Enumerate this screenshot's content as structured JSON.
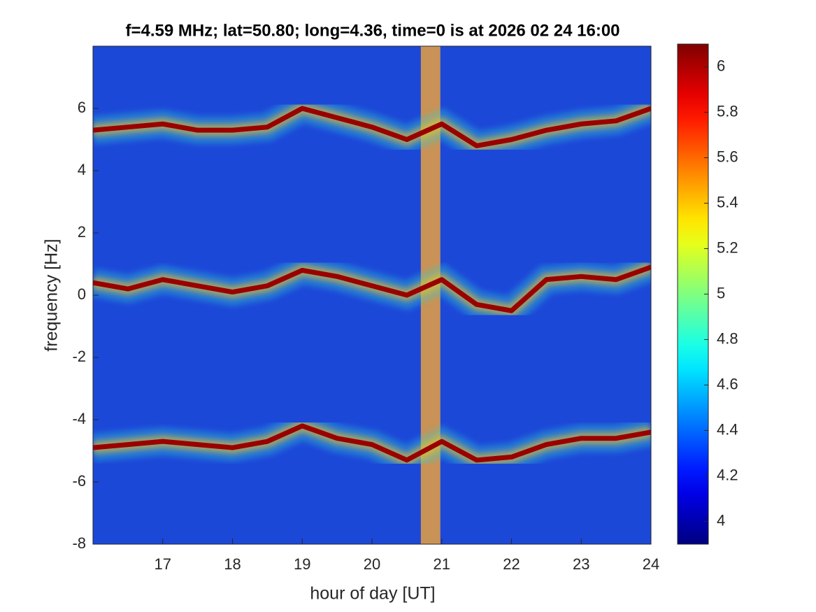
{
  "chart_data": {
    "type": "spectrogram",
    "title": "f=4.59 MHz;  lat=50.80; long=4.36, time=0 is at 2026 02 24 16:00",
    "x_label": "hour of day [UT]",
    "y_label": "frequency [Hz]",
    "xlim": [
      16,
      24
    ],
    "xticks": [
      17,
      18,
      19,
      20,
      21,
      22,
      23,
      24
    ],
    "ylim": [
      -8,
      8
    ],
    "yticks": [
      -8,
      -6,
      -4,
      -2,
      0,
      2,
      4,
      6
    ],
    "clim": [
      3.9,
      6.1
    ],
    "cticks": [
      4,
      4.2,
      4.4,
      4.6,
      4.8,
      5,
      5.2,
      5.4,
      5.6,
      5.8,
      6
    ],
    "colormap": "jet",
    "background_color": "#1c48d8",
    "broadband_x": [
      20.7,
      20.98
    ],
    "x": [
      16,
      16.5,
      17,
      17.5,
      18,
      18.5,
      19,
      19.5,
      20,
      20.5,
      21,
      21.5,
      22,
      22.5,
      23,
      23.5,
      24
    ],
    "series": [
      {
        "color": "#9a0000",
        "values": [
          5.3,
          5.4,
          5.5,
          5.3,
          5.3,
          5.4,
          6.0,
          5.7,
          5.4,
          5.0,
          5.5,
          4.8,
          5.0,
          5.3,
          5.5,
          5.6,
          6.0
        ]
      },
      {
        "color": "#9a0000",
        "values": [
          0.4,
          0.2,
          0.5,
          0.3,
          0.1,
          0.3,
          0.8,
          0.6,
          0.3,
          0.0,
          0.5,
          -0.3,
          -0.5,
          0.5,
          0.6,
          0.5,
          0.9
        ]
      },
      {
        "color": "#9a0000",
        "values": [
          -4.9,
          -4.8,
          -4.7,
          -4.8,
          -4.9,
          -4.7,
          -4.2,
          -4.6,
          -4.8,
          -5.3,
          -4.7,
          -5.3,
          -5.2,
          -4.8,
          -4.6,
          -4.6,
          -4.4
        ]
      }
    ]
  }
}
